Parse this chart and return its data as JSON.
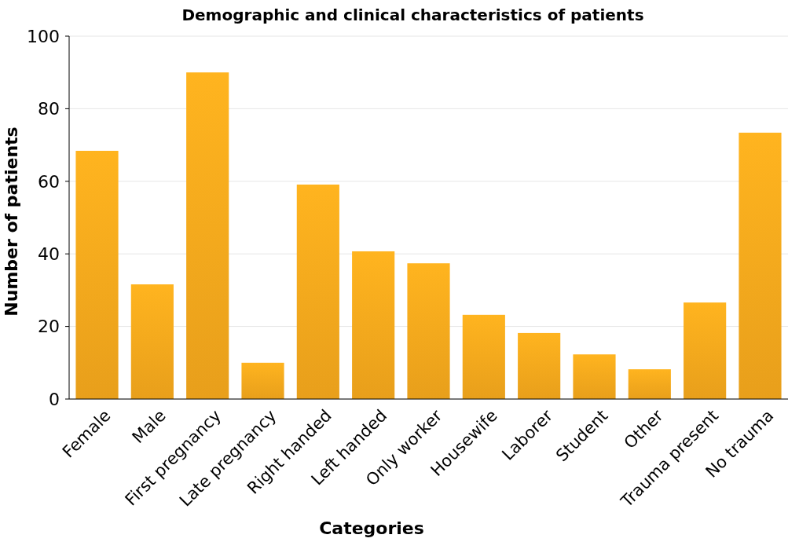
{
  "chart_data": {
    "type": "bar",
    "title": "Demographic and clinical characteristics of patients",
    "xlabel": "Categories",
    "ylabel": "Number of patients",
    "categories": [
      "Female",
      "Male",
      "First pregnancy",
      "Late pregnancy",
      "Right handed",
      "Left handed",
      "Only worker",
      "Housewife",
      "Laborer",
      "Student",
      "Other",
      "Trauma present",
      "No trauma"
    ],
    "values": [
      68.4,
      31.6,
      90,
      10,
      59.1,
      40.7,
      37.4,
      23.2,
      18.2,
      12.3,
      8.2,
      26.6,
      73.4
    ],
    "color": "#f5a81d",
    "ylim": [
      0,
      100
    ],
    "yticks": [
      0,
      20,
      40,
      60,
      80,
      100
    ],
    "grid": "y"
  }
}
